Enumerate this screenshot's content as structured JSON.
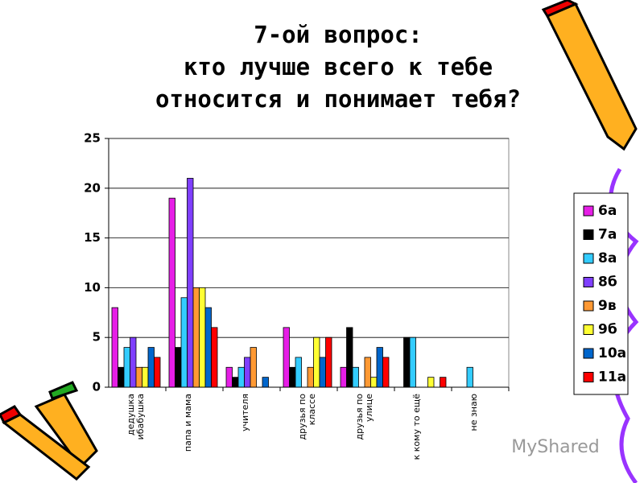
{
  "chart_data": {
    "type": "bar",
    "title": [
      "7-ой вопрос:",
      "кто лучше всего к тебе",
      "относится и понимает тебя?"
    ],
    "categories": [
      "дедушка\nибабушка",
      "папа и мама",
      "учителя",
      "друзья по\nклассе",
      "друзья по\nулице",
      "к кому то ещё",
      "не знаю"
    ],
    "series": [
      {
        "name": "6а",
        "color": "#e61ee6",
        "values": [
          8,
          19,
          2,
          6,
          2,
          0,
          0
        ]
      },
      {
        "name": "7а",
        "color": "#000000",
        "values": [
          2,
          4,
          1,
          2,
          6,
          5,
          0
        ]
      },
      {
        "name": "8а",
        "color": "#33ccff",
        "values": [
          4,
          9,
          2,
          3,
          2,
          5,
          2
        ]
      },
      {
        "name": "8б",
        "color": "#7f3fff",
        "values": [
          5,
          21,
          3,
          0,
          0,
          0,
          0
        ]
      },
      {
        "name": "9в",
        "color": "#ff9933",
        "values": [
          2,
          10,
          4,
          2,
          3,
          0,
          0
        ]
      },
      {
        "name": "9б",
        "color": "#ffff33",
        "values": [
          2,
          10,
          0,
          5,
          1,
          1,
          0
        ]
      },
      {
        "name": "10а",
        "color": "#0066cc",
        "values": [
          4,
          8,
          1,
          3,
          4,
          0,
          0
        ]
      },
      {
        "name": "11а",
        "color": "#ff0000",
        "values": [
          3,
          6,
          0,
          5,
          3,
          1,
          0
        ]
      }
    ],
    "ylim": [
      0,
      25
    ],
    "yticks": [
      0,
      5,
      10,
      15,
      20,
      25
    ],
    "grid": true,
    "legend": "right"
  },
  "watermark": "MyShared"
}
